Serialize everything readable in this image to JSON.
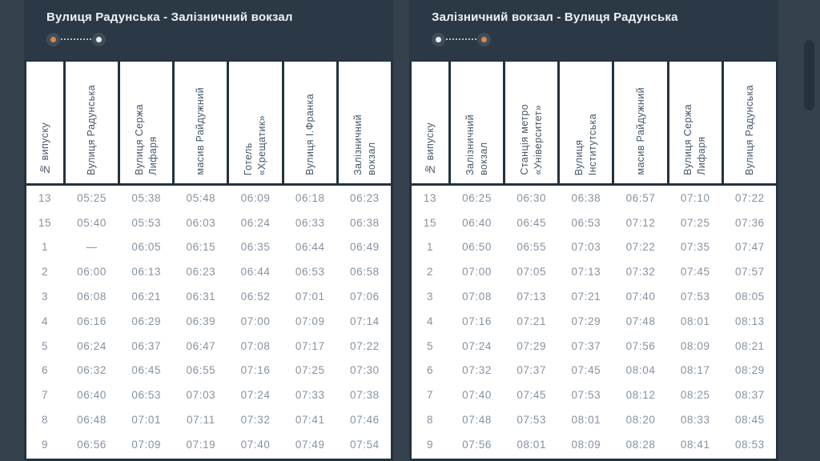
{
  "theme": {
    "page_bg": "#35424e",
    "panel_header_bg": "#2b3845",
    "table_border": "#223340",
    "cell_bg": "#ffffff",
    "header_text": "#44576a",
    "time_text": "#8592a0",
    "accent_orange": "#dd8742",
    "dot_white": "#e9edf0",
    "dot_circle_bg": "#3f4d5a"
  },
  "panels": [
    {
      "title": "Вулиця Радунська - Залізничний вокзал",
      "indicator": {
        "from_color": "#dd8742",
        "to_color": "#e9edf0"
      },
      "columns": [
        "№ випуску",
        "Вулиця Радунська",
        "Вулиця Сержа\nЛифаря",
        "масив Райдужний",
        "Готель\n«Хрещатик»",
        "Вулиця І.Франка",
        "Залізничний\nвокзал"
      ],
      "rows": [
        {
          "run": "13",
          "times": [
            "05:25",
            "05:38",
            "05:48",
            "06:09",
            "06:18",
            "06:23"
          ]
        },
        {
          "run": "15",
          "times": [
            "05:40",
            "05:53",
            "06:03",
            "06:24",
            "06:33",
            "06:38"
          ]
        },
        {
          "run": "1",
          "times": [
            "—",
            "06:05",
            "06:15",
            "06:35",
            "06:44",
            "06:49"
          ]
        },
        {
          "run": "2",
          "times": [
            "06:00",
            "06:13",
            "06:23",
            "06:44",
            "06:53",
            "06:58"
          ]
        },
        {
          "run": "3",
          "times": [
            "06:08",
            "06:21",
            "06:31",
            "06:52",
            "07:01",
            "07:06"
          ]
        },
        {
          "run": "4",
          "times": [
            "06:16",
            "06:29",
            "06:39",
            "07:00",
            "07:09",
            "07:14"
          ]
        },
        {
          "run": "5",
          "times": [
            "06:24",
            "06:37",
            "06:47",
            "07:08",
            "07:17",
            "07:22"
          ]
        },
        {
          "run": "6",
          "times": [
            "06:32",
            "06:45",
            "06:55",
            "07:16",
            "07:25",
            "07:30"
          ]
        },
        {
          "run": "7",
          "times": [
            "06:40",
            "06:53",
            "07:03",
            "07:24",
            "07:33",
            "07:38"
          ]
        },
        {
          "run": "8",
          "times": [
            "06:48",
            "07:01",
            "07:11",
            "07:32",
            "07:41",
            "07:46"
          ]
        },
        {
          "run": "9",
          "times": [
            "06:56",
            "07:09",
            "07:19",
            "07:40",
            "07:49",
            "07:54"
          ]
        }
      ]
    },
    {
      "title": "Залізничний вокзал - Вулиця Радунська",
      "indicator": {
        "from_color": "#e9edf0",
        "to_color": "#dd8742"
      },
      "columns": [
        "№ випуску",
        "Залізничний\nвокзал",
        "Станція метро\n«Університет»",
        "Вулиця\nІнститутська",
        "масив Райдужний",
        "Вулиця Сержа\nЛифаря",
        "Вулиця Радунська"
      ],
      "rows": [
        {
          "run": "13",
          "times": [
            "06:25",
            "06:30",
            "06:38",
            "06:57",
            "07:10",
            "07:22"
          ]
        },
        {
          "run": "15",
          "times": [
            "06:40",
            "06:45",
            "06:53",
            "07:12",
            "07:25",
            "07:36"
          ]
        },
        {
          "run": "1",
          "times": [
            "06:50",
            "06:55",
            "07:03",
            "07:22",
            "07:35",
            "07:47"
          ]
        },
        {
          "run": "2",
          "times": [
            "07:00",
            "07:05",
            "07:13",
            "07:32",
            "07:45",
            "07:57"
          ]
        },
        {
          "run": "3",
          "times": [
            "07:08",
            "07:13",
            "07:21",
            "07:40",
            "07:53",
            "08:05"
          ]
        },
        {
          "run": "4",
          "times": [
            "07:16",
            "07:21",
            "07:29",
            "07:48",
            "08:01",
            "08:13"
          ]
        },
        {
          "run": "5",
          "times": [
            "07:24",
            "07:29",
            "07:37",
            "07:56",
            "08:09",
            "08:21"
          ]
        },
        {
          "run": "6",
          "times": [
            "07:32",
            "07:37",
            "07:45",
            "08:04",
            "08:17",
            "08:29"
          ]
        },
        {
          "run": "7",
          "times": [
            "07:40",
            "07:45",
            "07:53",
            "08:12",
            "08:25",
            "08:37"
          ]
        },
        {
          "run": "8",
          "times": [
            "07:48",
            "07:53",
            "08:01",
            "08:20",
            "08:33",
            "08:45"
          ]
        },
        {
          "run": "9",
          "times": [
            "07:56",
            "08:01",
            "08:09",
            "08:28",
            "08:41",
            "08:53"
          ]
        }
      ]
    }
  ]
}
